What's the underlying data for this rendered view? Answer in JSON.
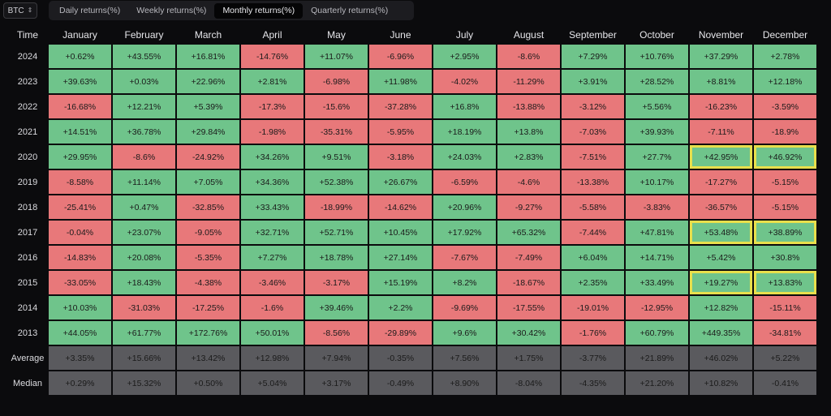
{
  "toolbar": {
    "asset": "BTC",
    "tabs": [
      {
        "label": "Daily returns(%)",
        "active": false
      },
      {
        "label": "Weekly returns(%)",
        "active": false
      },
      {
        "label": "Monthly returns(%)",
        "active": true
      },
      {
        "label": "Quarterly returns(%)",
        "active": false
      }
    ]
  },
  "colors": {
    "positive": "#6fc48b",
    "negative": "#e8787a",
    "stat": "#5a5a5e",
    "highlight": "#e8df4c"
  },
  "table": {
    "header_label": "Time",
    "months": [
      "January",
      "February",
      "March",
      "April",
      "May",
      "June",
      "July",
      "August",
      "September",
      "October",
      "November",
      "December"
    ],
    "rows": [
      {
        "label": "2024",
        "values": [
          "+0.62%",
          "+43.55%",
          "+16.81%",
          "-14.76%",
          "+11.07%",
          "-6.96%",
          "+2.95%",
          "-8.6%",
          "+7.29%",
          "+10.76%",
          "+37.29%",
          "+2.78%"
        ],
        "highlight": []
      },
      {
        "label": "2023",
        "values": [
          "+39.63%",
          "+0.03%",
          "+22.96%",
          "+2.81%",
          "-6.98%",
          "+11.98%",
          "-4.02%",
          "-11.29%",
          "+3.91%",
          "+28.52%",
          "+8.81%",
          "+12.18%"
        ],
        "highlight": []
      },
      {
        "label": "2022",
        "values": [
          "-16.68%",
          "+12.21%",
          "+5.39%",
          "-17.3%",
          "-15.6%",
          "-37.28%",
          "+16.8%",
          "-13.88%",
          "-3.12%",
          "+5.56%",
          "-16.23%",
          "-3.59%"
        ],
        "highlight": []
      },
      {
        "label": "2021",
        "values": [
          "+14.51%",
          "+36.78%",
          "+29.84%",
          "-1.98%",
          "-35.31%",
          "-5.95%",
          "+18.19%",
          "+13.8%",
          "-7.03%",
          "+39.93%",
          "-7.11%",
          "-18.9%"
        ],
        "highlight": []
      },
      {
        "label": "2020",
        "values": [
          "+29.95%",
          "-8.6%",
          "-24.92%",
          "+34.26%",
          "+9.51%",
          "-3.18%",
          "+24.03%",
          "+2.83%",
          "-7.51%",
          "+27.7%",
          "+42.95%",
          "+46.92%"
        ],
        "highlight": [
          10,
          11
        ]
      },
      {
        "label": "2019",
        "values": [
          "-8.58%",
          "+11.14%",
          "+7.05%",
          "+34.36%",
          "+52.38%",
          "+26.67%",
          "-6.59%",
          "-4.6%",
          "-13.38%",
          "+10.17%",
          "-17.27%",
          "-5.15%"
        ],
        "highlight": []
      },
      {
        "label": "2018",
        "values": [
          "-25.41%",
          "+0.47%",
          "-32.85%",
          "+33.43%",
          "-18.99%",
          "-14.62%",
          "+20.96%",
          "-9.27%",
          "-5.58%",
          "-3.83%",
          "-36.57%",
          "-5.15%"
        ],
        "highlight": []
      },
      {
        "label": "2017",
        "values": [
          "-0.04%",
          "+23.07%",
          "-9.05%",
          "+32.71%",
          "+52.71%",
          "+10.45%",
          "+17.92%",
          "+65.32%",
          "-7.44%",
          "+47.81%",
          "+53.48%",
          "+38.89%"
        ],
        "highlight": [
          10,
          11
        ]
      },
      {
        "label": "2016",
        "values": [
          "-14.83%",
          "+20.08%",
          "-5.35%",
          "+7.27%",
          "+18.78%",
          "+27.14%",
          "-7.67%",
          "-7.49%",
          "+6.04%",
          "+14.71%",
          "+5.42%",
          "+30.8%"
        ],
        "highlight": []
      },
      {
        "label": "2015",
        "values": [
          "-33.05%",
          "+18.43%",
          "-4.38%",
          "-3.46%",
          "-3.17%",
          "+15.19%",
          "+8.2%",
          "-18.67%",
          "+2.35%",
          "+33.49%",
          "+19.27%",
          "+13.83%"
        ],
        "highlight": [
          10,
          11
        ]
      },
      {
        "label": "2014",
        "values": [
          "+10.03%",
          "-31.03%",
          "-17.25%",
          "-1.6%",
          "+39.46%",
          "+2.2%",
          "-9.69%",
          "-17.55%",
          "-19.01%",
          "-12.95%",
          "+12.82%",
          "-15.11%"
        ],
        "highlight": []
      },
      {
        "label": "2013",
        "values": [
          "+44.05%",
          "+61.77%",
          "+172.76%",
          "+50.01%",
          "-8.56%",
          "-29.89%",
          "+9.6%",
          "+30.42%",
          "-1.76%",
          "+60.79%",
          "+449.35%",
          "-34.81%"
        ],
        "highlight": []
      }
    ],
    "stats": [
      {
        "label": "Average",
        "values": [
          "+3.35%",
          "+15.66%",
          "+13.42%",
          "+12.98%",
          "+7.94%",
          "-0.35%",
          "+7.56%",
          "+1.75%",
          "-3.77%",
          "+21.89%",
          "+46.02%",
          "+5.22%"
        ]
      },
      {
        "label": "Median",
        "values": [
          "+0.29%",
          "+15.32%",
          "+0.50%",
          "+5.04%",
          "+3.17%",
          "-0.49%",
          "+8.90%",
          "-8.04%",
          "-4.35%",
          "+21.20%",
          "+10.82%",
          "-0.41%"
        ]
      }
    ]
  }
}
